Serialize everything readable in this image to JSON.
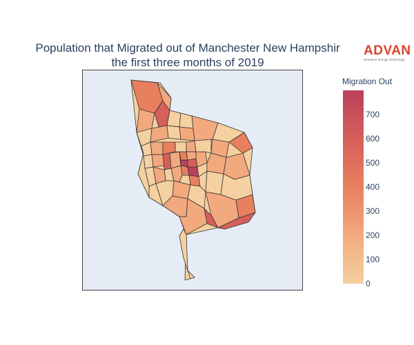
{
  "title": {
    "line1": "Population that Migrated out of Manchester New Hampshir",
    "line2": "the first three months of 2019"
  },
  "logo": {
    "name": "ADVAN",
    "tagline": "Research through Technology"
  },
  "colorbar": {
    "title": "Migration Out",
    "ticks": [
      "0",
      "100",
      "200",
      "300",
      "400",
      "500",
      "600",
      "700"
    ],
    "min": 0,
    "max": 800,
    "colorscale": [
      "#f5d0a0",
      "#f2a97e",
      "#e8805f",
      "#d65f5a",
      "#bc3f5c"
    ]
  },
  "map": {
    "background": "#e5ecf6",
    "border_color": "#444444",
    "region_stroke": "#333333"
  }
}
